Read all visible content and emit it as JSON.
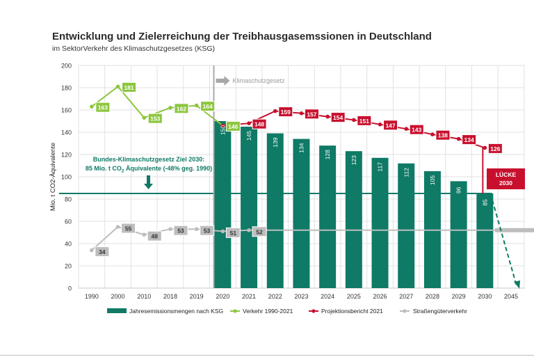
{
  "chart_data": {
    "type": "bar",
    "title": "Entwicklung und Zielerreichung der Treibhausgasemssionen in Deutschland",
    "subtitle": "im SektorVerkehr des Klimaschutzgesetzes (KSG)",
    "ylabel": "Mio. t CO2-Äquivalente",
    "ylim": [
      0,
      200
    ],
    "yticks": [
      0,
      20,
      40,
      60,
      80,
      100,
      120,
      140,
      160,
      180,
      200
    ],
    "grid": true,
    "legend_position": "bottom",
    "categories": [
      "1990",
      "2000",
      "2010",
      "2018",
      "2019",
      "2020",
      "2021",
      "2022",
      "2023",
      "2024",
      "2025",
      "2026",
      "2027",
      "2028",
      "2029",
      "2030",
      "2045"
    ],
    "bars": {
      "name": "Jahresemissionsmengen nach KSG",
      "color": "#0f7a66",
      "values": [
        null,
        null,
        null,
        null,
        null,
        150,
        145,
        139,
        134,
        128,
        123,
        117,
        112,
        105,
        96,
        85,
        null
      ]
    },
    "series": [
      {
        "name": "Verkehr 1990-2021",
        "color": "#8dc63f",
        "points": [
          [
            "1990",
            163
          ],
          [
            "2000",
            181
          ],
          [
            "2010",
            153
          ],
          [
            "2018",
            162
          ],
          [
            "2019",
            164
          ],
          [
            "2020",
            146
          ]
        ]
      },
      {
        "name": "Projektionsbericht 2021",
        "color": "#c8102e",
        "points": [
          [
            "2020",
            146
          ],
          [
            "2021",
            148
          ],
          [
            "2022",
            159
          ],
          [
            "2023",
            157
          ],
          [
            "2024",
            154
          ],
          [
            "2025",
            151
          ],
          [
            "2026",
            147
          ],
          [
            "2027",
            143
          ],
          [
            "2028",
            138
          ],
          [
            "2029",
            134
          ],
          [
            "2030",
            126
          ]
        ]
      },
      {
        "name": "Straßengüterverkehr",
        "color": "#bdbdbd",
        "points": [
          [
            "1990",
            34
          ],
          [
            "2000",
            55
          ],
          [
            "2010",
            48
          ],
          [
            "2018",
            53
          ],
          [
            "2019",
            53
          ],
          [
            "2020",
            51
          ],
          [
            "2021",
            52
          ]
        ]
      }
    ],
    "target_value": 85,
    "target_line_color": "#0f7a66",
    "dashed_extension": {
      "from": [
        "2030",
        85
      ],
      "to": [
        "2045",
        0
      ]
    },
    "gap": {
      "label_line1": "LÜCKE",
      "label_line2": "2030",
      "from": 126,
      "to": 85,
      "at": "2030",
      "color": "#c8102e"
    },
    "klimaschutzgesetz": {
      "label": "Klimaschutzgesetz",
      "at": "2020"
    },
    "target_annotation": {
      "line1": "Bundes-Klimaschutzgesetz Ziel 2030:",
      "line2_prefix": "85 Mio. t CO",
      "line2_sub": "2",
      "line2_suffix": " Äquivalente (-48% geg. 1990)"
    }
  }
}
